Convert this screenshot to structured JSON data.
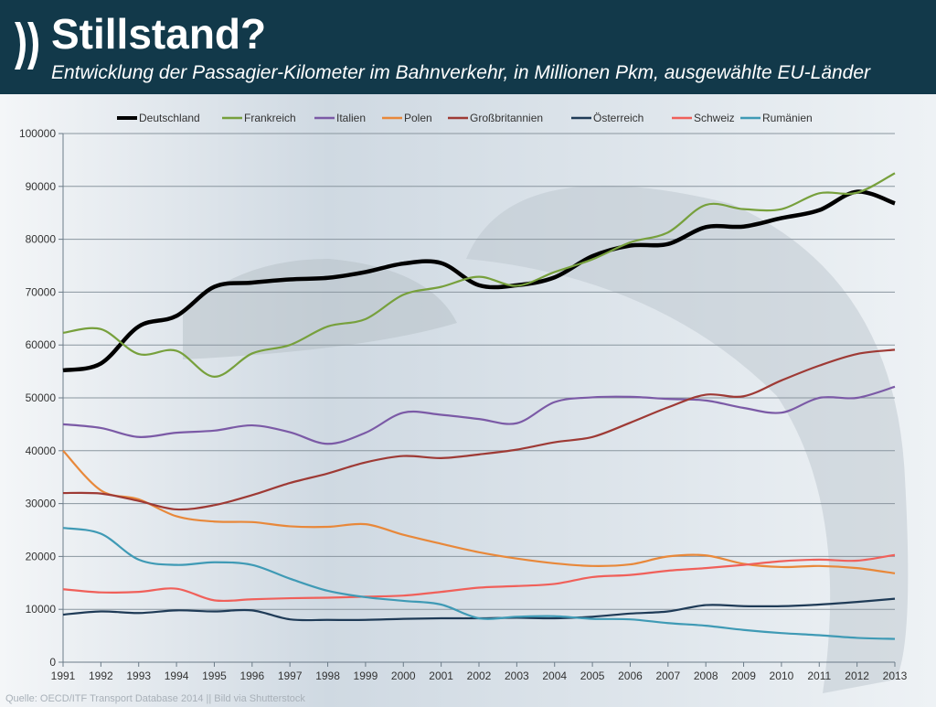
{
  "header": {
    "title": "Stillstand?",
    "subtitle": "Entwicklung der Passagier-Kilometer im Bahnverkehr, in Millionen Pkm, ausgewählte EU-Länder"
  },
  "footer": {
    "source": "Quelle: OECD/ITF Transport Database 2014 || Bild via Shutterstock"
  },
  "chart_data": {
    "type": "line",
    "title": "Stillstand?",
    "xlabel": "",
    "ylabel": "",
    "ylim": [
      0,
      100000
    ],
    "yticks": [
      "0",
      "10000",
      "20000",
      "30000",
      "40000",
      "50000",
      "60000",
      "70000",
      "80000",
      "90000",
      "100000"
    ],
    "x": [
      "1991",
      "1992",
      "1993",
      "1994",
      "1995",
      "1996",
      "1997",
      "1998",
      "1999",
      "2000",
      "2001",
      "2002",
      "2003",
      "2004",
      "2005",
      "2006",
      "2007",
      "2008",
      "2009",
      "2010",
      "2011",
      "2012",
      "2013"
    ],
    "grid": true,
    "legend": "top",
    "series": [
      {
        "name": "Deutschland",
        "color": "#000000",
        "values": [
          55200,
          56500,
          63500,
          65500,
          71000,
          71800,
          72400,
          72700,
          73800,
          75400,
          75500,
          71300,
          71300,
          72800,
          76800,
          78800,
          79100,
          82300,
          82400,
          84000,
          85500,
          89000,
          86800
        ]
      },
      {
        "name": "Frankreich",
        "color": "#77a03c",
        "values": [
          62300,
          63000,
          58300,
          58900,
          54000,
          58400,
          60000,
          63500,
          64900,
          69500,
          71000,
          72900,
          71200,
          73800,
          76200,
          79400,
          81300,
          86500,
          85700,
          85700,
          88700,
          88800,
          92500
        ]
      },
      {
        "name": "Italien",
        "color": "#7b5aa6",
        "values": [
          45000,
          44300,
          42600,
          43400,
          43800,
          44800,
          43500,
          41300,
          43400,
          47200,
          46800,
          46000,
          45200,
          49200,
          50100,
          50200,
          49800,
          49500,
          48100,
          47200,
          50000,
          50000,
          52100
        ]
      },
      {
        "name": "Polen",
        "color": "#e8883a",
        "values": [
          40000,
          32500,
          30800,
          27600,
          26600,
          26500,
          25700,
          25600,
          26100,
          24100,
          22400,
          20800,
          19600,
          18700,
          18200,
          18500,
          20000,
          20200,
          18600,
          18000,
          18200,
          17800,
          16800
        ]
      },
      {
        "name": "Großbritannien",
        "color": "#9e3a35",
        "values": [
          32000,
          31900,
          30500,
          28900,
          29700,
          31600,
          33900,
          35700,
          37800,
          39000,
          38600,
          39300,
          40200,
          41600,
          42600,
          45300,
          48200,
          50600,
          50300,
          53300,
          56100,
          58300,
          59100
        ]
      },
      {
        "name": "Österreich",
        "color": "#1f3b57",
        "values": [
          9000,
          9600,
          9300,
          9800,
          9600,
          9800,
          8100,
          8000,
          8000,
          8200,
          8300,
          8300,
          8400,
          8300,
          8600,
          9200,
          9600,
          10800,
          10600,
          10600,
          10900,
          11400,
          12000
        ]
      },
      {
        "name": "Schweiz",
        "color": "#f0605a",
        "values": [
          13800,
          13200,
          13300,
          13900,
          11700,
          11900,
          12100,
          12200,
          12400,
          12600,
          13300,
          14100,
          14400,
          14800,
          16100,
          16500,
          17300,
          17800,
          18400,
          19100,
          19400,
          19200,
          20300
        ]
      },
      {
        "name": "Rumänien",
        "color": "#3f9ab5",
        "values": [
          25400,
          24300,
          19400,
          18400,
          18900,
          18400,
          15800,
          13500,
          12300,
          11600,
          10900,
          8300,
          8600,
          8700,
          8200,
          8100,
          7400,
          6900,
          6100,
          5500,
          5100,
          4600,
          4400
        ]
      }
    ]
  }
}
